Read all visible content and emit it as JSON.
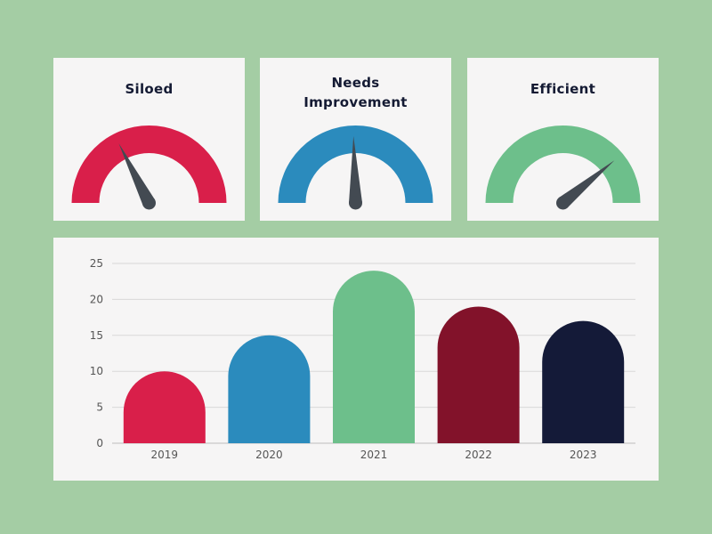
{
  "gauges": [
    {
      "title_lines": [
        "Siloed"
      ],
      "color": "#d91f4a",
      "needle_value": 0.35
    },
    {
      "title_lines": [
        "Needs",
        "Improvement"
      ],
      "color": "#2b8bbd",
      "needle_value": 0.49
    },
    {
      "title_lines": [
        "Efficient"
      ],
      "color": "#6dbf8b",
      "needle_value": 0.78
    }
  ],
  "needle_color": "#434a52",
  "chart_data": {
    "type": "bar",
    "categories": [
      "2019",
      "2020",
      "2021",
      "2022",
      "2023"
    ],
    "values": [
      10,
      15,
      24,
      19,
      17
    ],
    "colors": [
      "#d91f4a",
      "#2b8bbd",
      "#6dbf8b",
      "#82122a",
      "#141a38"
    ],
    "ylim": [
      0,
      25
    ],
    "yticks": [
      "0",
      "5",
      "10",
      "15",
      "20",
      "25"
    ],
    "grid": true,
    "title": "",
    "xlabel": "",
    "ylabel": ""
  }
}
